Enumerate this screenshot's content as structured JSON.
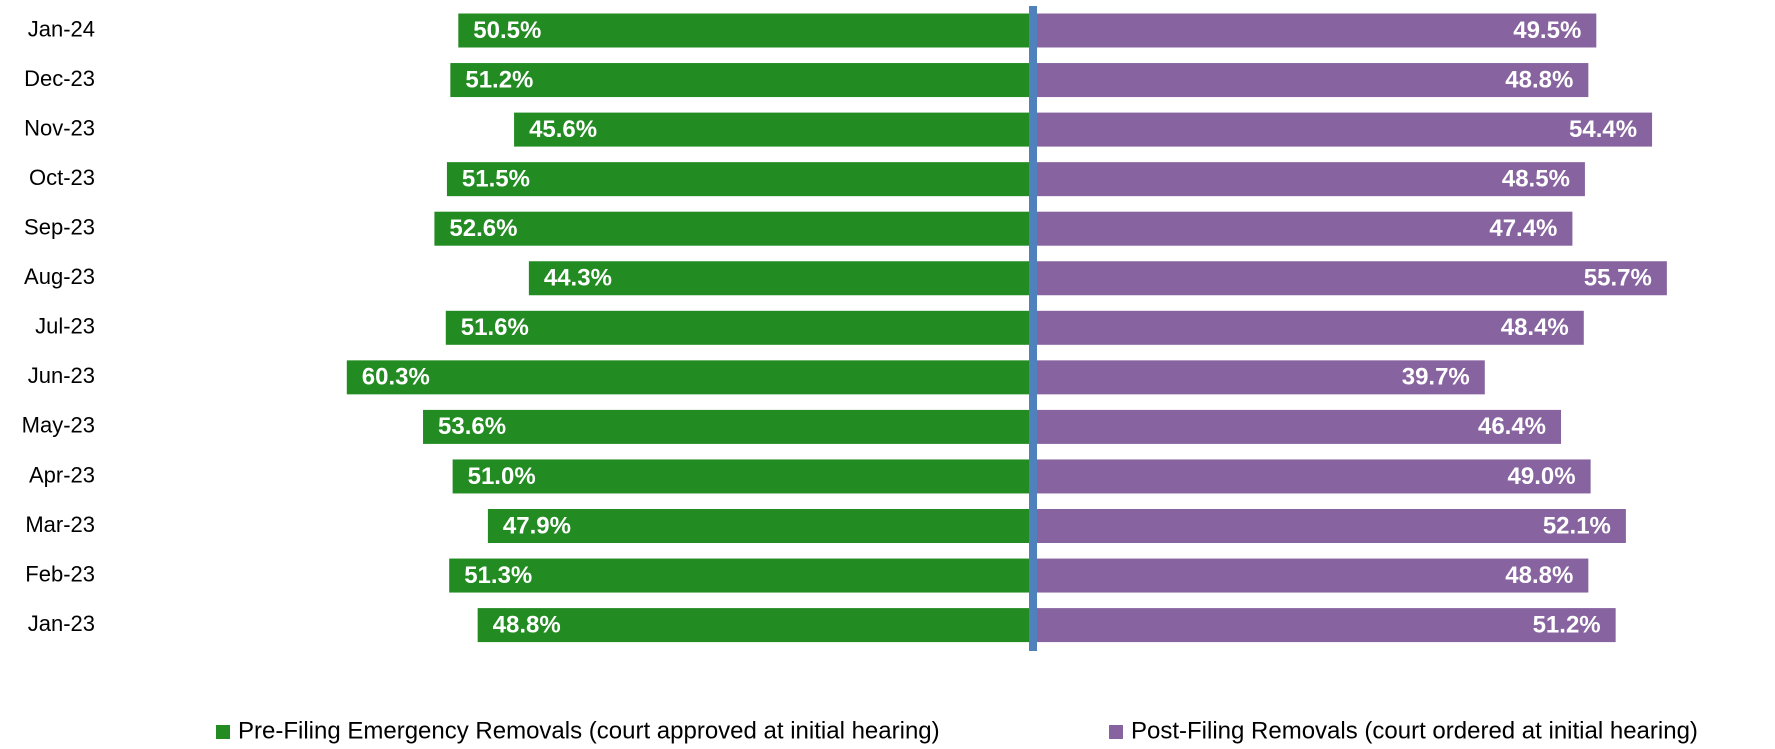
{
  "chart_data": {
    "type": "bar",
    "orientation": "horizontal",
    "diverging": true,
    "categories": [
      "Jan-24",
      "Dec-23",
      "Nov-23",
      "Oct-23",
      "Sep-23",
      "Aug-23",
      "Jul-23",
      "Jun-23",
      "May-23",
      "Apr-23",
      "Mar-23",
      "Feb-23",
      "Jan-23"
    ],
    "series": [
      {
        "name": "Pre-Filing Emergency Removals (court approved at initial hearing)",
        "color": "#228b22",
        "side": "left",
        "values": [
          50.5,
          51.2,
          45.6,
          51.5,
          52.6,
          44.3,
          51.6,
          60.3,
          53.6,
          51.0,
          47.9,
          51.3,
          48.8
        ],
        "value_labels": [
          "50.5%",
          "51.2%",
          "45.6%",
          "51.5%",
          "52.6%",
          "44.3%",
          "51.6%",
          "60.3%",
          "53.6%",
          "51.0%",
          "47.9%",
          "51.3%",
          "48.8%"
        ]
      },
      {
        "name": "Post-Filing Removals (court ordered at initial hearing)",
        "color": "#8764a0",
        "side": "right",
        "values": [
          49.5,
          48.8,
          54.4,
          48.5,
          47.4,
          55.7,
          48.4,
          39.7,
          46.4,
          49.0,
          52.1,
          48.8,
          51.2
        ],
        "value_labels": [
          "49.5%",
          "48.8%",
          "54.4%",
          "48.5%",
          "47.4%",
          "55.7%",
          "48.4%",
          "39.7%",
          "46.4%",
          "49.0%",
          "52.1%",
          "48.8%",
          "51.2%"
        ]
      }
    ],
    "legend": "bottom"
  }
}
